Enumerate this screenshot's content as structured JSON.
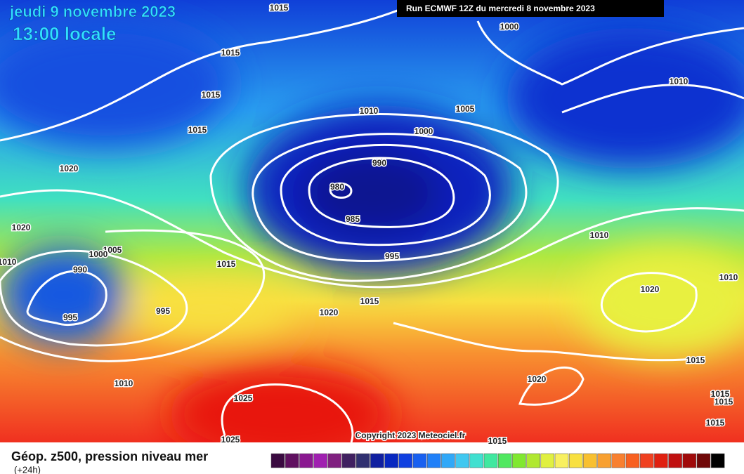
{
  "header": {
    "date": "jeudi 9 novembre 2023",
    "time": "13:00 locale",
    "run": "Run ECMWF 12Z du mercredi 8 novembre 2023"
  },
  "isobar_labels": [
    1015,
    1000,
    1015,
    1015,
    1010,
    1010,
    1005,
    1000,
    1015,
    1020,
    990,
    980,
    985,
    1020,
    1005,
    1000,
    990,
    1010,
    995,
    1015,
    1010,
    1010,
    1020,
    1015,
    1020,
    995,
    995,
    1015,
    1010,
    1020,
    1025,
    1015,
    1015,
    1015,
    1025,
    1015
  ],
  "copyright": "Copyright 2023 Meteociel.fr",
  "footer": {
    "title": "Géop. z500, pression niveau mer",
    "lead": "(+24h)"
  }
}
